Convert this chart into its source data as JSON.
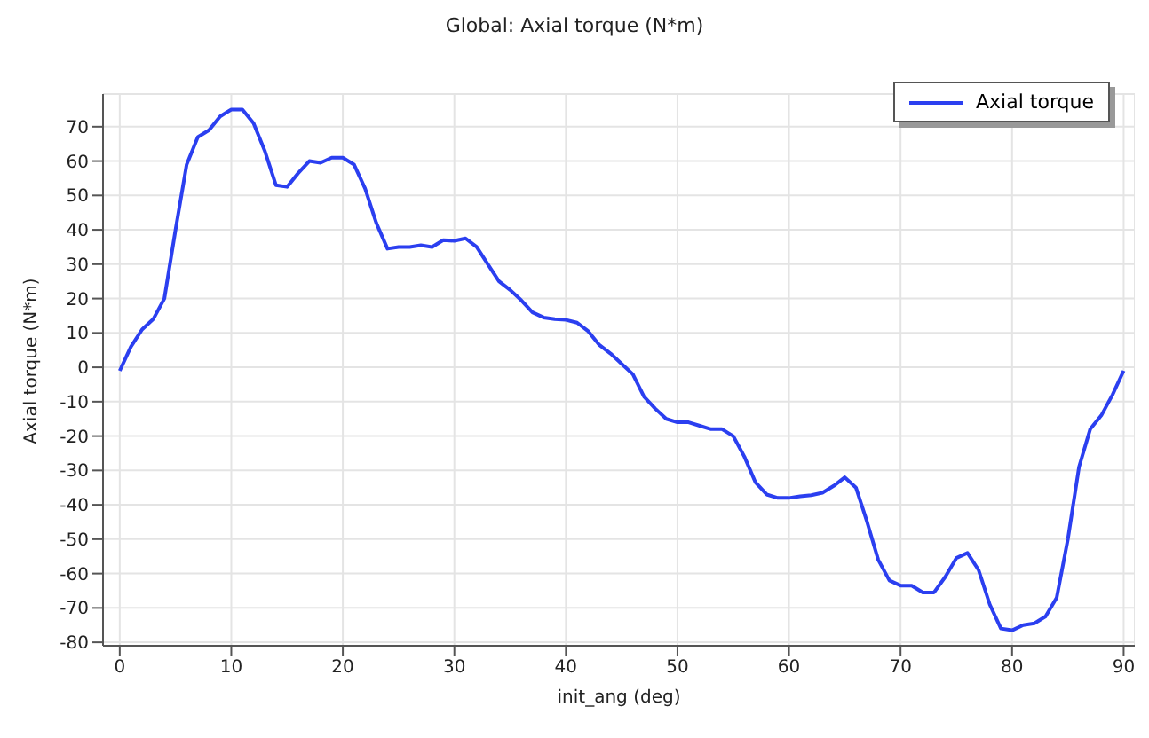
{
  "chart_data": {
    "type": "line",
    "title": "Global: Axial torque (N*m)",
    "xlabel": "init_ang (deg)",
    "ylabel": "Axial torque (N*m)",
    "x": [
      0,
      1,
      2,
      3,
      4,
      5,
      6,
      7,
      8,
      9,
      10,
      11,
      12,
      13,
      14,
      15,
      16,
      17,
      18,
      19,
      20,
      21,
      22,
      23,
      24,
      25,
      26,
      27,
      28,
      29,
      30,
      31,
      32,
      33,
      34,
      35,
      36,
      37,
      38,
      39,
      40,
      41,
      42,
      43,
      44,
      45,
      46,
      47,
      48,
      49,
      50,
      51,
      52,
      53,
      54,
      55,
      56,
      57,
      58,
      59,
      60,
      61,
      62,
      63,
      64,
      65,
      66,
      67,
      68,
      69,
      70,
      71,
      72,
      73,
      74,
      75,
      76,
      77,
      78,
      79,
      80,
      81,
      82,
      83,
      84,
      85,
      86,
      87,
      88,
      89,
      90
    ],
    "series": [
      {
        "name": "Axial torque",
        "color": "#2b3ff0",
        "values": [
          -1,
          6,
          11,
          14,
          20,
          40,
          59,
          67,
          69,
          73,
          75,
          75,
          71,
          63,
          53,
          52.5,
          56.5,
          60,
          59.5,
          61,
          61,
          59,
          52,
          42,
          34.5,
          35,
          35,
          35.5,
          35,
          37,
          36.8,
          37.5,
          35,
          30,
          25,
          22.5,
          19.5,
          16,
          14.5,
          14,
          13.8,
          13,
          10.5,
          6.5,
          4,
          1,
          -2,
          -8.5,
          -12,
          -15,
          -16,
          -16,
          -17,
          -18,
          -18,
          -20,
          -26,
          -33.5,
          -37,
          -38,
          -38,
          -37.5,
          -37.2,
          -36.5,
          -34.5,
          -32,
          -35,
          -45,
          -56,
          -62,
          -63.5,
          -63.5,
          -65.5,
          -65.5,
          -61,
          -55.5,
          -54,
          -59,
          -69,
          -76,
          -76.5,
          -75,
          -74.5,
          -72.5,
          -67,
          -50,
          -29,
          -18,
          -14,
          -8,
          -1
        ]
      }
    ],
    "xlim": [
      -1.5,
      91
    ],
    "xticks": [
      0,
      10,
      20,
      30,
      40,
      50,
      60,
      70,
      80,
      90
    ],
    "ylim": [
      -81,
      79.5
    ],
    "yticks": [
      -80,
      -70,
      -60,
      -50,
      -40,
      -30,
      -20,
      -10,
      0,
      10,
      20,
      30,
      40,
      50,
      60,
      70
    ],
    "grid": true,
    "legend": "top right",
    "marker": "none",
    "line_style": "solid"
  }
}
